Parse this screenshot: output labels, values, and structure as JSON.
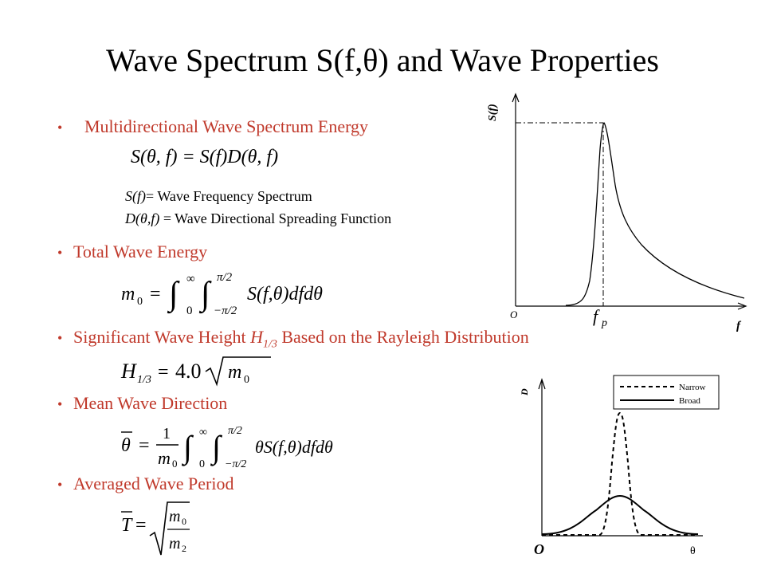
{
  "title": "Wave Spectrum  S(f,θ) and Wave Properties",
  "bullets": {
    "b1": "Multidirectional Wave Spectrum Energy",
    "b2": "Total Wave Energy",
    "b3_pre": "Significant Wave Height ",
    "b3_sym": "H",
    "b3_sub": "1/3",
    "b3_post": " Based on the Rayleigh Distribution",
    "b4": "Mean Wave Direction",
    "b5": "Averaged Wave Period"
  },
  "definitions": {
    "d1_sym": "S(f)",
    "d1_text": "= Wave Frequency Spectrum",
    "d2_sym": "D(θ,f)",
    "d2_text": " = Wave Directional Spreading Function"
  },
  "equations": {
    "eq1": "S(θ, f) = S(f)D(θ, f)",
    "eq2_lhs": "m",
    "eq2_sub": "0",
    "eq2_rhs": "S(f,θ)dfdθ",
    "eq2_int1_upper": "∞",
    "eq2_int1_lower": "0",
    "eq2_int2_upper": "π/2",
    "eq2_int2_lower": "−π/2",
    "eq3_lhs": "H",
    "eq3_sub": "1/3",
    "eq3_coef": "4.0",
    "eq3_rad": "m",
    "eq3_rad_sub": "0",
    "eq4_lhs": "θ",
    "eq4_num": "1",
    "eq4_den": "m",
    "eq4_den_sub": "0",
    "eq4_rhs": "θS(f,θ)dfdθ",
    "eq5_lhs": "T",
    "eq5_num": "m",
    "eq5_num_sub": "0",
    "eq5_den": "m",
    "eq5_den_sub": "2"
  },
  "spectrum_plot": {
    "y_label": "S(f)",
    "x_label": "f",
    "origin_label": "O",
    "peak_label": "f",
    "peak_label_sub": "p"
  },
  "spreading_plot": {
    "y_label": "D",
    "x_label": "θ",
    "origin_label": "O",
    "legend": [
      "Narrow",
      "Broad"
    ]
  },
  "colors": {
    "accent": "#c0392b",
    "text": "#000000"
  }
}
